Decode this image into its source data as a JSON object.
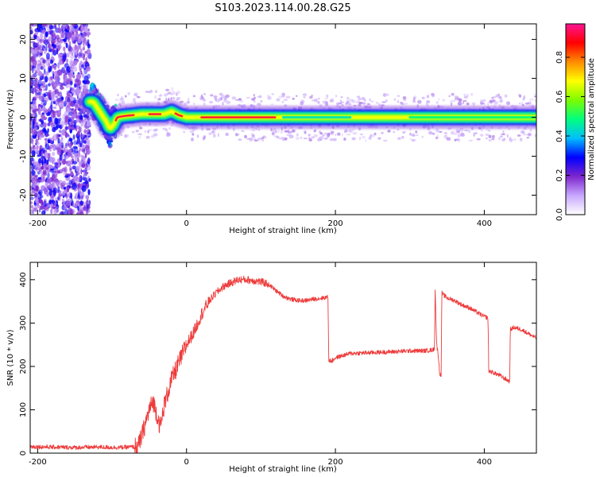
{
  "figure_title": "S103.2023.114.00.28.G25",
  "colors": {
    "snr_line": "#ee3b3b",
    "axes": "#000000",
    "colormap": [
      "#ffffff",
      "#c8a8ff",
      "#7d26cd",
      "#0000ff",
      "#00bfff",
      "#00ff7f",
      "#7cfc00",
      "#ffff00",
      "#ff8c00",
      "#ff0000",
      "#ff1493"
    ]
  },
  "chart_data": [
    {
      "type": "heatmap",
      "name": "spectrogram",
      "xlabel": "Height of straight line (km)",
      "ylabel": "Frequency (Hz)",
      "xlim": [
        -210,
        470
      ],
      "ylim": [
        -25,
        24
      ],
      "x_ticks": [
        -200,
        0,
        200,
        400
      ],
      "y_ticks": [
        -20,
        -10,
        0,
        10,
        20
      ],
      "colorbar": {
        "label": "Normalized spectral amplitude",
        "range": [
          0,
          0.97
        ],
        "ticks": [
          0.0,
          0.2,
          0.4,
          0.6,
          0.8
        ]
      },
      "features": [
        {
          "region": "noise",
          "x_range": [
            -210,
            -130
          ],
          "freq_range": [
            -25,
            24
          ],
          "amplitude": 0.1
        },
        {
          "region": "transition",
          "x_range": [
            -130,
            -95
          ],
          "freq_range": [
            -8,
            10
          ],
          "amplitude": 0.4
        },
        {
          "region": "signal_band",
          "x_range": [
            -95,
            470
          ],
          "center_freq_hz": 0,
          "half_width_hz": 1.5,
          "peak_amplitude": 0.95
        }
      ],
      "band_center": {
        "x": [
          -125,
          -115,
          -108,
          -103,
          -98,
          -93,
          -85,
          -60,
          -30,
          -20,
          -10,
          0,
          470
        ],
        "freq": [
          4,
          1,
          -1,
          -3,
          -2,
          0,
          0.3,
          0.8,
          0.8,
          1.5,
          0.5,
          0,
          0
        ]
      },
      "band_hotspots": [
        {
          "x": [
            -95,
            -70
          ],
          "amplitude": 0.95
        },
        {
          "x": [
            -50,
            -35
          ],
          "amplitude": 0.95
        },
        {
          "x": [
            -15,
            -5
          ],
          "amplitude": 0.95
        },
        {
          "x": [
            20,
            120
          ],
          "amplitude": 0.95
        },
        {
          "x": [
            130,
            220
          ],
          "amplitude": 0.55
        },
        {
          "x": [
            300,
            470
          ],
          "amplitude": 0.6
        }
      ]
    },
    {
      "type": "line",
      "name": "snr",
      "xlabel": "Height of straight line (km)",
      "ylabel": "SNR (10 * v/v)",
      "xlim": [
        -210,
        470
      ],
      "ylim": [
        0,
        440
      ],
      "x_ticks": [
        -200,
        0,
        200,
        400
      ],
      "y_ticks": [
        0,
        100,
        200,
        300,
        400
      ],
      "series": [
        {
          "x": [
            -210,
            -180,
            -150,
            -120,
            -90,
            -65,
            -60,
            -55,
            -50,
            -45,
            -40,
            -35,
            -30,
            -25,
            -20,
            -15,
            -10,
            -5,
            0,
            10,
            20,
            30,
            40,
            50,
            60,
            70,
            80,
            90,
            100,
            110,
            120,
            130,
            140,
            150,
            160,
            170,
            180,
            190,
            191,
            195,
            200,
            220,
            250,
            280,
            300,
            320,
            330,
            333,
            334,
            336,
            338,
            340,
            342,
            343,
            345,
            350,
            360,
            370,
            380,
            390,
            400,
            405,
            406,
            420,
            434,
            435,
            440,
            450,
            460,
            470
          ],
          "y": [
            15,
            14,
            13,
            14,
            13,
            15,
            40,
            70,
            100,
            120,
            90,
            60,
            110,
            140,
            170,
            190,
            210,
            230,
            250,
            280,
            320,
            350,
            370,
            385,
            393,
            400,
            400,
            398,
            395,
            390,
            375,
            362,
            355,
            352,
            352,
            355,
            357,
            360,
            215,
            212,
            220,
            230,
            232,
            234,
            236,
            236,
            238,
            240,
            380,
            250,
            230,
            185,
            180,
            370,
            365,
            358,
            352,
            342,
            335,
            325,
            315,
            312,
            190,
            180,
            165,
            285,
            290,
            285,
            275,
            265
          ]
        }
      ]
    }
  ]
}
